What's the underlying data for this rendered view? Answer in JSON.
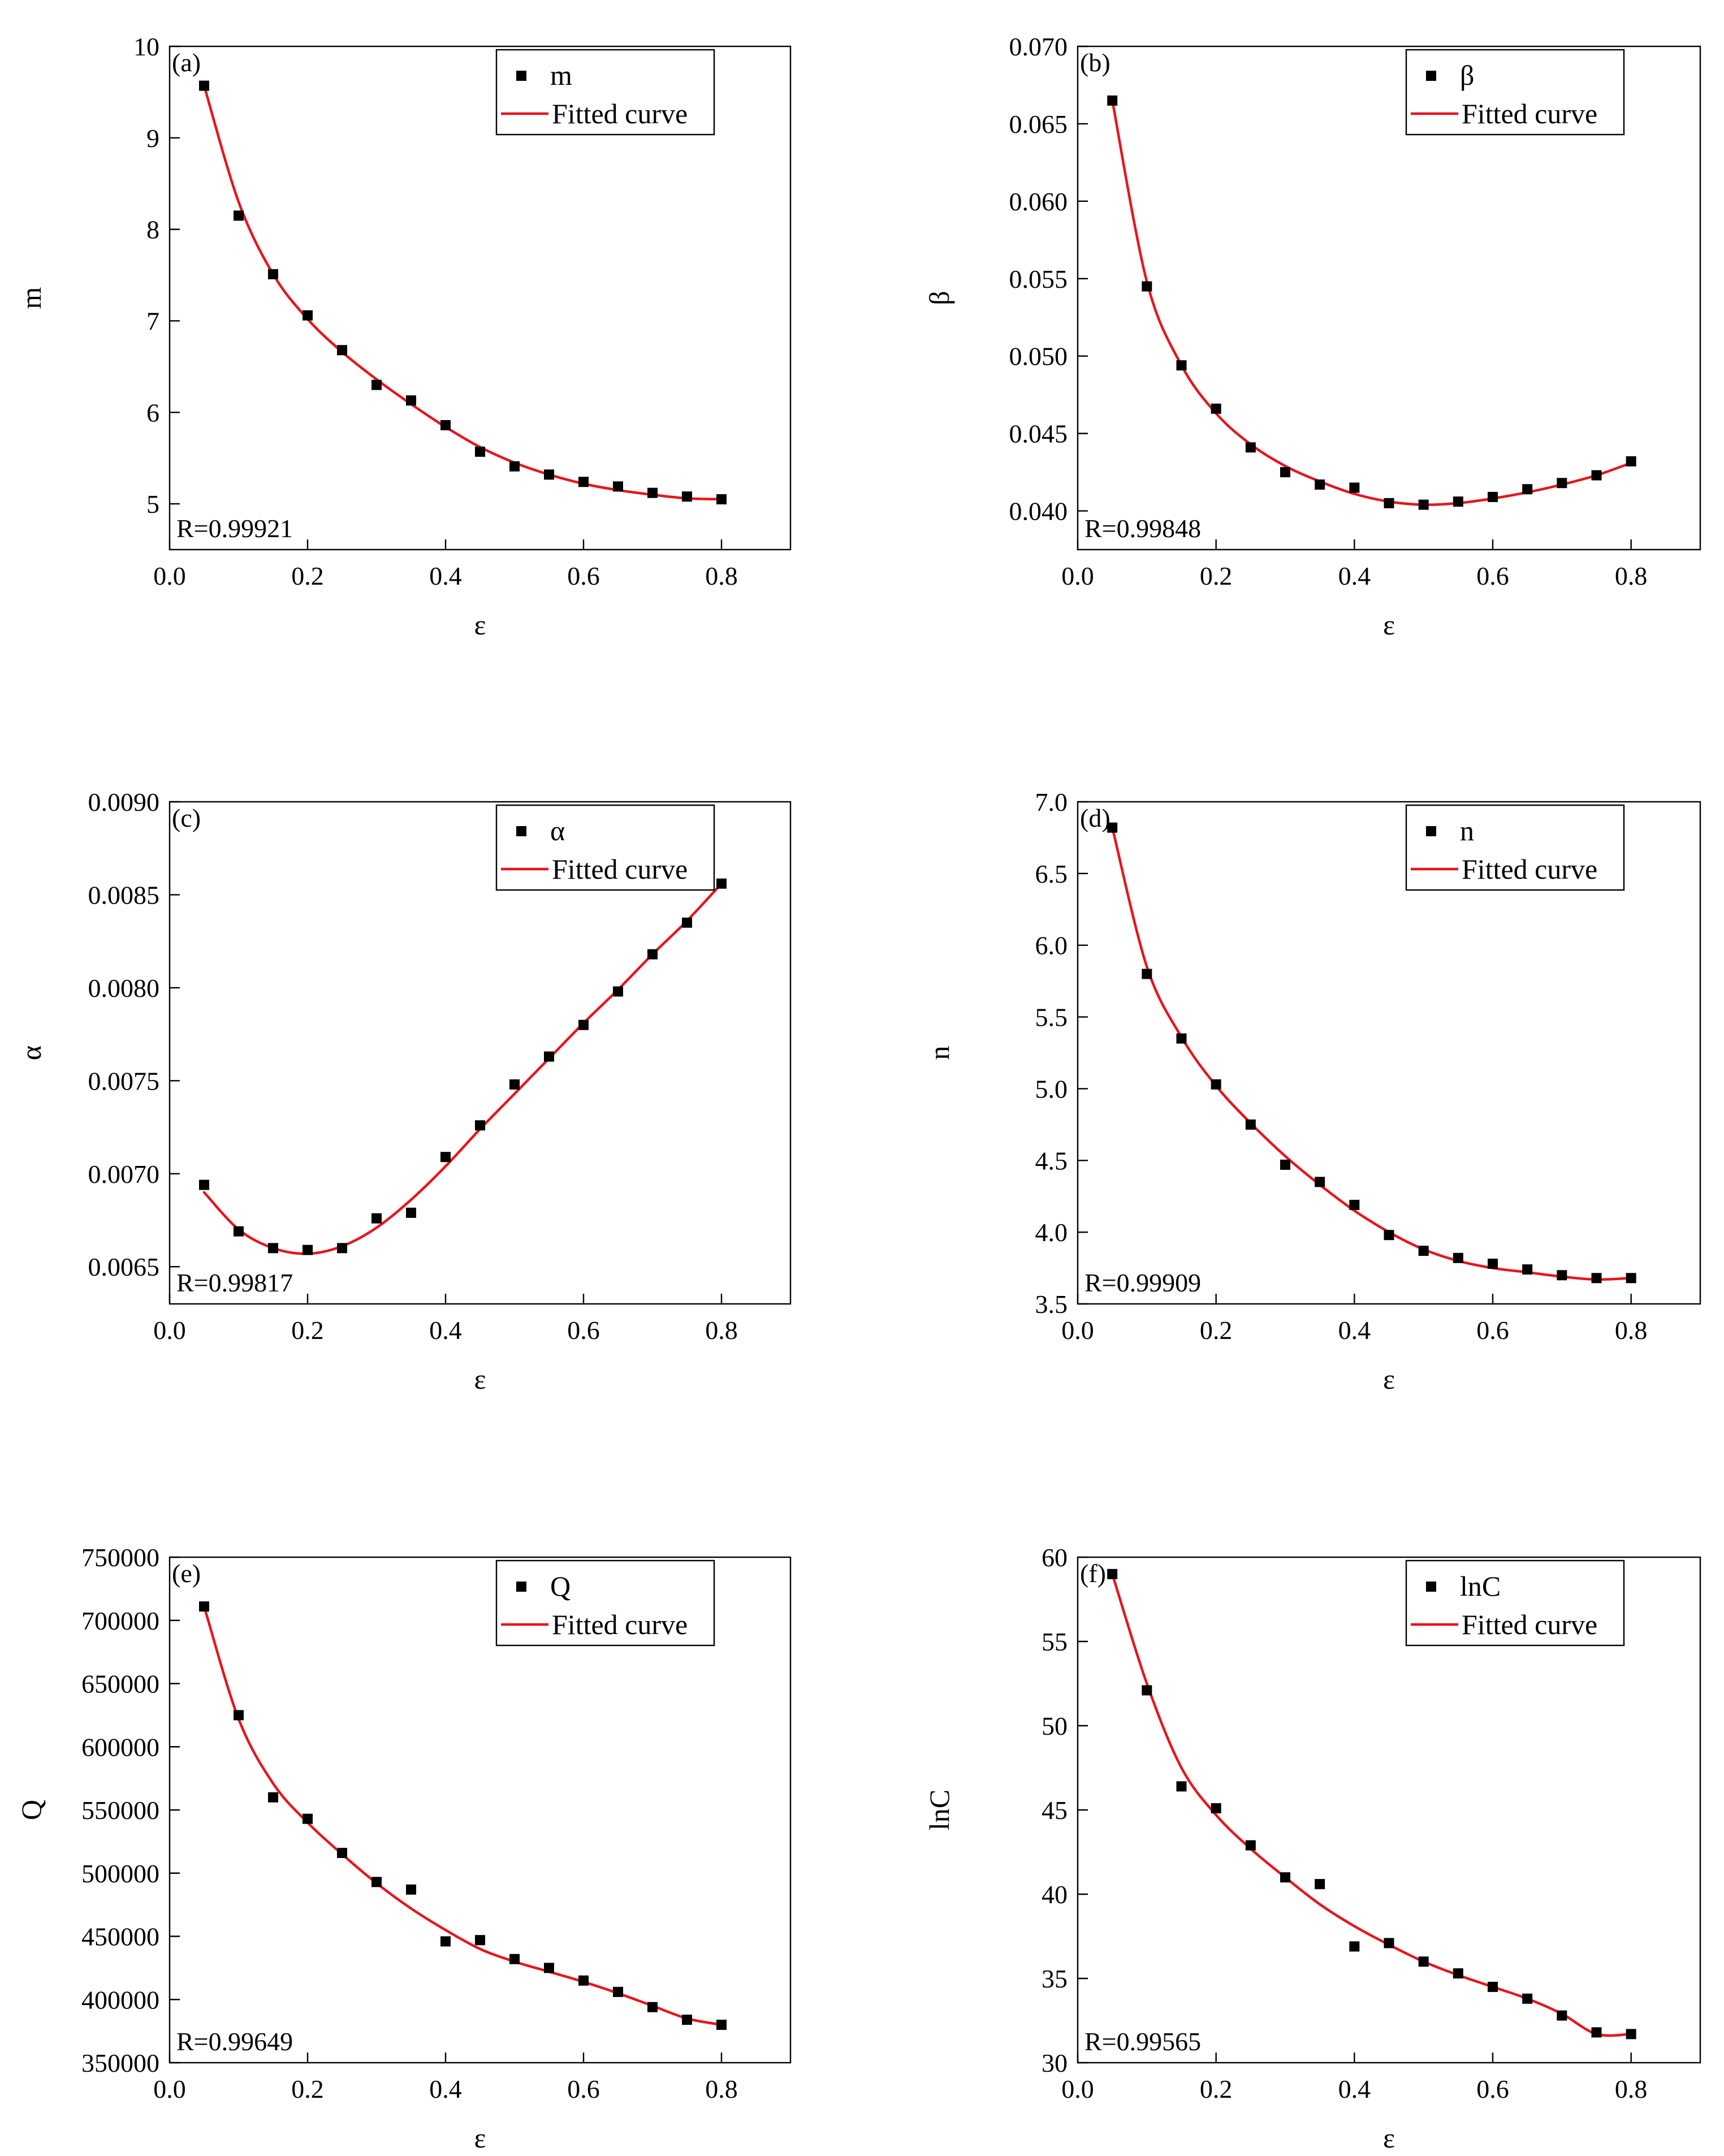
{
  "colors": {
    "points": "#000000",
    "fit": "#e8141b",
    "frame": "#000000"
  },
  "chart_data": [
    {
      "type": "scatter",
      "panel": "(a)",
      "xlabel": "ε",
      "ylabel": "m",
      "xlim": [
        0,
        0.9
      ],
      "ylim": [
        4.5,
        10
      ],
      "xticks": [
        0.0,
        0.2,
        0.4,
        0.6,
        0.8
      ],
      "xtick_labels": [
        "0.0",
        "0.2",
        "0.4",
        "0.6",
        "0.8"
      ],
      "yticks": [
        5,
        6,
        7,
        8,
        9,
        10
      ],
      "ytick_labels": [
        "5",
        "6",
        "7",
        "8",
        "9",
        "10"
      ],
      "legend": {
        "position": "top-right",
        "points_label": "m",
        "fit_label": "Fitted curve"
      },
      "r_label": "R=0.99921",
      "r_position": "bottom-left",
      "x": [
        0.05,
        0.1,
        0.15,
        0.2,
        0.25,
        0.3,
        0.35,
        0.4,
        0.45,
        0.5,
        0.55,
        0.6,
        0.65,
        0.7,
        0.75,
        0.8
      ],
      "y": [
        9.57,
        8.15,
        7.51,
        7.06,
        6.68,
        6.3,
        6.13,
        5.86,
        5.57,
        5.41,
        5.32,
        5.24,
        5.19,
        5.12,
        5.08,
        5.05
      ],
      "fit": [
        9.57,
        8.3,
        7.51,
        7.02,
        6.66,
        6.36,
        6.09,
        5.84,
        5.62,
        5.45,
        5.32,
        5.22,
        5.15,
        5.1,
        5.06,
        5.05
      ]
    },
    {
      "type": "scatter",
      "panel": "(b)",
      "xlabel": "ε",
      "ylabel": "β",
      "xlim": [
        0,
        0.9
      ],
      "ylim": [
        0.0375,
        0.07
      ],
      "xticks": [
        0.0,
        0.2,
        0.4,
        0.6,
        0.8
      ],
      "xtick_labels": [
        "0.0",
        "0.2",
        "0.4",
        "0.6",
        "0.8"
      ],
      "yticks": [
        0.04,
        0.045,
        0.05,
        0.055,
        0.06,
        0.065,
        0.07
      ],
      "ytick_labels": [
        "0.040",
        "0.045",
        "0.050",
        "0.055",
        "0.060",
        "0.065",
        "0.070"
      ],
      "legend": {
        "position": "top-right",
        "points_label": "β",
        "fit_label": "Fitted curve"
      },
      "r_label": "R=0.99848",
      "r_position": "bottom-left",
      "x": [
        0.05,
        0.1,
        0.15,
        0.2,
        0.25,
        0.3,
        0.35,
        0.4,
        0.45,
        0.5,
        0.55,
        0.6,
        0.65,
        0.7,
        0.75,
        0.8
      ],
      "y": [
        0.0665,
        0.0545,
        0.0494,
        0.0466,
        0.0441,
        0.0425,
        0.0417,
        0.0415,
        0.0405,
        0.0404,
        0.0406,
        0.0409,
        0.0414,
        0.0418,
        0.0423,
        0.0432
      ],
      "fit": [
        0.0665,
        0.0548,
        0.0494,
        0.0463,
        0.0443,
        0.0429,
        0.0419,
        0.0411,
        0.0406,
        0.0404,
        0.0405,
        0.0408,
        0.0412,
        0.0417,
        0.0423,
        0.0431
      ]
    },
    {
      "type": "scatter",
      "panel": "(c)",
      "xlabel": "ε",
      "ylabel": "α",
      "xlim": [
        0,
        0.9
      ],
      "ylim": [
        0.0063,
        0.009
      ],
      "xticks": [
        0.0,
        0.2,
        0.4,
        0.6,
        0.8
      ],
      "xtick_labels": [
        "0.0",
        "0.2",
        "0.4",
        "0.6",
        "0.8"
      ],
      "yticks": [
        0.0065,
        0.007,
        0.0075,
        0.008,
        0.0085,
        0.009
      ],
      "ytick_labels": [
        "0.0065",
        "0.0070",
        "0.0075",
        "0.0080",
        "0.0085",
        "0.0090"
      ],
      "legend": {
        "position": "top-right",
        "points_label": "α",
        "fit_label": "Fitted curve"
      },
      "r_label": "R=0.99817",
      "r_position": "bottom-left",
      "x": [
        0.05,
        0.1,
        0.15,
        0.2,
        0.25,
        0.3,
        0.35,
        0.4,
        0.45,
        0.5,
        0.55,
        0.6,
        0.65,
        0.7,
        0.75,
        0.8
      ],
      "y": [
        0.00694,
        0.00669,
        0.0066,
        0.00659,
        0.0066,
        0.00676,
        0.00679,
        0.00709,
        0.00726,
        0.00748,
        0.00763,
        0.0078,
        0.00798,
        0.00818,
        0.00835,
        0.00856
      ],
      "fit": [
        0.0069,
        0.0067,
        0.0066,
        0.00657,
        0.00661,
        0.00671,
        0.00686,
        0.00704,
        0.00724,
        0.00743,
        0.00762,
        0.00781,
        0.00799,
        0.00818,
        0.00836,
        0.00856
      ]
    },
    {
      "type": "scatter",
      "panel": "(d)",
      "xlabel": "ε",
      "ylabel": "n",
      "xlim": [
        0,
        0.9
      ],
      "ylim": [
        3.5,
        7.0
      ],
      "xticks": [
        0.0,
        0.2,
        0.4,
        0.6,
        0.8
      ],
      "xtick_labels": [
        "0.0",
        "0.2",
        "0.4",
        "0.6",
        "0.8"
      ],
      "yticks": [
        3.5,
        4.0,
        4.5,
        5.0,
        5.5,
        6.0,
        6.5,
        7.0
      ],
      "ytick_labels": [
        "3.5",
        "4.0",
        "4.5",
        "5.0",
        "5.5",
        "6.0",
        "6.5",
        "7.0"
      ],
      "legend": {
        "position": "top-right",
        "points_label": "n",
        "fit_label": "Fitted curve"
      },
      "r_label": "R=0.99909",
      "r_position": "bottom-left",
      "x": [
        0.05,
        0.1,
        0.15,
        0.2,
        0.25,
        0.3,
        0.35,
        0.4,
        0.45,
        0.5,
        0.55,
        0.6,
        0.65,
        0.7,
        0.75,
        0.8
      ],
      "y": [
        6.82,
        5.8,
        5.35,
        5.03,
        4.75,
        4.47,
        4.35,
        4.19,
        3.98,
        3.87,
        3.82,
        3.78,
        3.74,
        3.7,
        3.68,
        3.68
      ],
      "fit": [
        6.82,
        5.85,
        5.36,
        5.02,
        4.76,
        4.53,
        4.33,
        4.15,
        4.0,
        3.88,
        3.8,
        3.75,
        3.72,
        3.69,
        3.67,
        3.68
      ]
    },
    {
      "type": "scatter",
      "panel": "(e)",
      "xlabel": "ε",
      "ylabel": "Q",
      "xlim": [
        0,
        0.9
      ],
      "ylim": [
        350000,
        750000
      ],
      "xticks": [
        0.0,
        0.2,
        0.4,
        0.6,
        0.8
      ],
      "xtick_labels": [
        "0.0",
        "0.2",
        "0.4",
        "0.6",
        "0.8"
      ],
      "yticks": [
        350000,
        400000,
        450000,
        500000,
        550000,
        600000,
        650000,
        700000,
        750000
      ],
      "ytick_labels": [
        "350000",
        "400000",
        "450000",
        "500000",
        "550000",
        "600000",
        "650000",
        "700000",
        "750000"
      ],
      "legend": {
        "position": "top-right",
        "points_label": "Q",
        "fit_label": "Fitted curve"
      },
      "r_label": "R=0.99649",
      "r_position": "bottom-left",
      "x": [
        0.05,
        0.1,
        0.15,
        0.2,
        0.25,
        0.3,
        0.35,
        0.4,
        0.45,
        0.5,
        0.55,
        0.6,
        0.65,
        0.7,
        0.75,
        0.8
      ],
      "y": [
        711000,
        625000,
        560000,
        543000,
        516000,
        493000,
        487000,
        446000,
        447000,
        432000,
        425000,
        415000,
        406000,
        394000,
        384000,
        380000
      ],
      "fit": [
        711000,
        622000,
        571000,
        540000,
        515000,
        492000,
        472000,
        455000,
        440000,
        430000,
        422000,
        414000,
        405000,
        395000,
        385000,
        380000
      ]
    },
    {
      "type": "scatter",
      "panel": "(f)",
      "xlabel": "ε",
      "ylabel": "lnC",
      "xlim": [
        0,
        0.9
      ],
      "ylim": [
        30,
        60
      ],
      "xticks": [
        0.0,
        0.2,
        0.4,
        0.6,
        0.8
      ],
      "xtick_labels": [
        "0.0",
        "0.2",
        "0.4",
        "0.6",
        "0.8"
      ],
      "yticks": [
        30,
        35,
        40,
        45,
        50,
        55,
        60
      ],
      "ytick_labels": [
        "30",
        "35",
        "40",
        "45",
        "50",
        "55",
        "60"
      ],
      "legend": {
        "position": "top-right",
        "points_label": "lnC",
        "fit_label": "Fitted curve"
      },
      "r_label": "R=0.99565",
      "r_position": "bottom-left",
      "x": [
        0.05,
        0.1,
        0.15,
        0.2,
        0.25,
        0.3,
        0.35,
        0.4,
        0.45,
        0.5,
        0.55,
        0.6,
        0.65,
        0.7,
        0.75,
        0.8
      ],
      "y": [
        59.0,
        52.1,
        46.4,
        45.1,
        42.9,
        41.0,
        40.6,
        36.9,
        37.1,
        36.0,
        35.3,
        34.5,
        33.8,
        32.8,
        31.8,
        31.7
      ],
      "fit": [
        59.0,
        52.5,
        47.5,
        44.7,
        42.7,
        41.0,
        39.4,
        38.1,
        37.0,
        36.0,
        35.2,
        34.5,
        33.8,
        32.9,
        31.7,
        31.7
      ]
    }
  ]
}
